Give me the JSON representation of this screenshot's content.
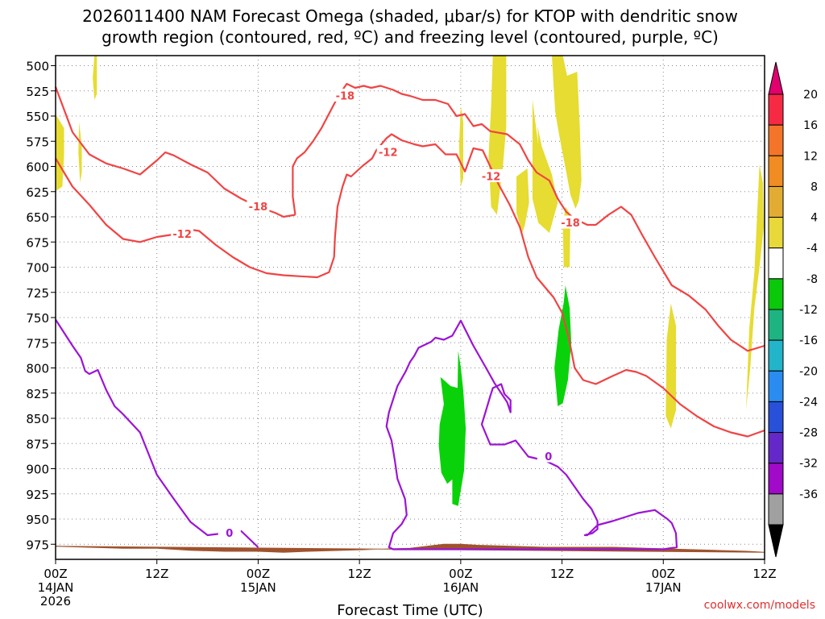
{
  "chart_data": {
    "type": "time-height cross-section (omega shading with temperature contours)",
    "title_line1": "2026011400 NAM Forecast Omega (shaded, μbar/s) for KTOP with dendritic snow",
    "title_line2": "growth region (contoured, red, ºC) and freezing level (contoured, purple, ºC)",
    "xlabel": "Forecast Time (UTC)",
    "ylabel": "",
    "x_axis": {
      "unit": "forecast hour",
      "range": [
        0,
        84
      ]
    },
    "y_axis": {
      "unit": "hPa",
      "range": [
        490,
        990
      ],
      "inverted": true
    },
    "y_ticks": [
      "500",
      "525",
      "550",
      "575",
      "600",
      "625",
      "650",
      "675",
      "700",
      "725",
      "750",
      "775",
      "800",
      "825",
      "850",
      "875",
      "900",
      "925",
      "950",
      "975"
    ],
    "x_ticks": [
      {
        "hour": 0,
        "lines": [
          "00Z",
          "14JAN",
          "2026"
        ]
      },
      {
        "hour": 12,
        "lines": [
          "12Z"
        ]
      },
      {
        "hour": 24,
        "lines": [
          "00Z",
          "15JAN"
        ]
      },
      {
        "hour": 36,
        "lines": [
          "12Z"
        ]
      },
      {
        "hour": 48,
        "lines": [
          "00Z",
          "16JAN"
        ]
      },
      {
        "hour": 60,
        "lines": [
          "12Z"
        ]
      },
      {
        "hour": 72,
        "lines": [
          "00Z",
          "17JAN"
        ]
      },
      {
        "hour": 84,
        "lines": [
          "12Z"
        ]
      }
    ],
    "colorbar": {
      "labels": [
        "20",
        "16",
        "12",
        "8",
        "4",
        "-4",
        "-8",
        "-12",
        "-16",
        "-20",
        "-24",
        "-28",
        "-32",
        "-36"
      ],
      "colors": [
        "#f72a44",
        "#f4752a",
        "#f08c21",
        "#e2ac33",
        "#e8d83a",
        "#ffffff",
        "#0ac80a",
        "#1eb482",
        "#22b4c8",
        "#2a8cf0",
        "#2850d8",
        "#6428c8",
        "#a00ac8",
        "#a0a0a0"
      ],
      "top_arrow": "#e0006e",
      "bottom_arrow": "#000000"
    },
    "colors": {
      "dgz_contour": "#f04444",
      "freezing_contour": "#9c14d4",
      "ground": "#a0522d",
      "shade_up": "#0ad20a",
      "shade_down": "#e6dc32"
    },
    "contour_labels": [
      {
        "text": "-18",
        "x": 34.3,
        "p": 530,
        "color": "#f04444"
      },
      {
        "text": "-12",
        "x": 39.4,
        "p": 586,
        "color": "#f04444"
      },
      {
        "text": "-18",
        "x": 24.0,
        "p": 640,
        "color": "#f04444"
      },
      {
        "text": "-12",
        "x": 15.0,
        "p": 667,
        "color": "#f04444"
      },
      {
        "text": "-12",
        "x": 51.6,
        "p": 610,
        "color": "#f04444"
      },
      {
        "text": "-18",
        "x": 61.0,
        "p": 656,
        "color": "#f04444"
      },
      {
        "text": "0",
        "x": 20.6,
        "p": 964,
        "color": "#9c14d4"
      },
      {
        "text": "0",
        "x": 58.4,
        "p": 888,
        "color": "#9c14d4"
      }
    ],
    "series": [
      {
        "name": "DGZ -12C line A",
        "kind": "line",
        "color": "#f04444",
        "x": [
          0,
          2,
          4,
          6,
          8,
          10,
          12,
          13.6,
          15.4,
          17,
          19,
          21,
          23,
          25,
          27,
          29,
          31,
          32.4,
          33
        ],
        "p": [
          592,
          620,
          638,
          658,
          672,
          675,
          670,
          668,
          662,
          664,
          678,
          690,
          700,
          706,
          708,
          709,
          710,
          705,
          690
        ]
      },
      {
        "name": "DGZ -12C line B",
        "kind": "line",
        "color": "#f04444",
        "x": [
          33,
          33.1,
          33.4,
          34,
          34.5,
          35,
          36.3,
          37.5,
          38,
          39.2,
          39.8,
          41,
          42.5,
          43.5,
          45,
          46.2,
          47.5,
          48.5,
          49.5,
          50.6,
          51.5,
          52.5,
          53.8,
          55,
          56,
          57,
          59,
          60,
          60.8,
          61.5,
          62.5,
          64,
          66,
          67.6,
          68.8,
          70,
          72,
          74,
          76,
          78,
          80,
          82,
          84
        ],
        "p": [
          690,
          670,
          640,
          620,
          608,
          610,
          600,
          592,
          584,
          572,
          568,
          574,
          578,
          580,
          578,
          588,
          588,
          605,
          582,
          584,
          600,
          618,
          638,
          660,
          690,
          710,
          730,
          745,
          770,
          800,
          812,
          816,
          808,
          802,
          804,
          808,
          820,
          836,
          848,
          858,
          864,
          868,
          862
        ]
      },
      {
        "name": "DGZ -18C line A",
        "kind": "line",
        "color": "#f04444",
        "x": [
          0,
          2,
          4,
          6,
          8,
          10,
          12,
          13,
          14,
          16,
          18,
          20,
          22,
          24,
          26,
          27,
          28.4
        ],
        "p": [
          521,
          566,
          588,
          597,
          602,
          608,
          594,
          586,
          589,
          598,
          606,
          622,
          632,
          640,
          646,
          650,
          648
        ]
      },
      {
        "name": "DGZ -18C line B",
        "kind": "line",
        "color": "#f04444",
        "x": [
          28.4,
          28.1,
          28.1,
          28.6,
          29.5,
          30.5,
          31.5,
          32.5,
          33.5,
          34.5,
          35.5,
          36.5,
          37.4,
          38.5,
          40,
          41,
          42,
          43.5,
          45,
          46.5,
          47.5,
          48.5,
          49.5,
          50.5,
          51.5,
          53.5,
          55,
          56,
          57,
          58.5,
          59.5,
          60.5,
          61.5,
          63,
          64,
          65.5,
          67,
          68.2,
          69.5,
          71,
          73,
          75,
          77,
          78.5,
          80,
          82,
          84
        ],
        "p": [
          648,
          630,
          600,
          592,
          586,
          575,
          562,
          546,
          530,
          518,
          522,
          520,
          522,
          520,
          524,
          528,
          530,
          534,
          534,
          538,
          550,
          548,
          560,
          558,
          565,
          568,
          578,
          594,
          606,
          614,
          632,
          645,
          652,
          658,
          658,
          648,
          640,
          648,
          668,
          690,
          718,
          728,
          742,
          758,
          772,
          783,
          778
        ]
      },
      {
        "name": "freezing line A",
        "kind": "line",
        "color": "#9c14d4",
        "x": [
          0,
          2,
          3,
          3.5,
          4,
          5,
          6,
          7,
          8,
          10,
          12,
          14,
          16,
          18,
          20,
          22,
          24
        ],
        "p": [
          752,
          778,
          790,
          803,
          806,
          802,
          822,
          838,
          846,
          864,
          906,
          930,
          953,
          966,
          964,
          962,
          978
        ]
      },
      {
        "name": "freezing closed loop",
        "kind": "area-outline",
        "color": "#9c14d4",
        "x": [
          39.5,
          40.5,
          41.5,
          42,
          42.5,
          43,
          44.5,
          45,
          46,
          47,
          48,
          49.5,
          51,
          52,
          53.5,
          53.9,
          53.9,
          53.2,
          52.8,
          51.8,
          51.5,
          51,
          50.5,
          51.5,
          53.2,
          54.5,
          56,
          58,
          59.5,
          60.5,
          61.5,
          62.5,
          63.5,
          64.2,
          64.2,
          63.6,
          62.7,
          63,
          64.2,
          66,
          69,
          71,
          72.5,
          73,
          73.5,
          73.6,
          72,
          70,
          68,
          66,
          64,
          62,
          60,
          58,
          56,
          54,
          52,
          50,
          48,
          46,
          44,
          42,
          41,
          40,
          39.5,
          40,
          41,
          41.6,
          41.4,
          40.5,
          40.2,
          39.8,
          39.2,
          39.5
        ],
        "p": [
          844,
          818,
          803,
          794,
          788,
          780,
          774,
          770,
          772,
          768,
          753,
          778,
          800,
          815,
          834,
          844,
          832,
          826,
          816,
          820,
          828,
          842,
          856,
          876,
          876,
          872,
          888,
          892,
          898,
          906,
          918,
          930,
          940,
          952,
          960,
          964,
          966,
          966,
          956,
          952,
          944,
          941,
          950,
          954,
          964,
          978,
          980,
          980,
          980,
          980,
          980,
          980,
          980,
          980,
          980,
          980,
          980,
          980,
          980,
          980,
          980,
          980,
          980,
          980,
          978,
          964,
          955,
          946,
          930,
          910,
          892,
          872,
          858,
          844
        ]
      },
      {
        "name": "ground",
        "kind": "area",
        "color": "#a0522d",
        "x": [
          0,
          4,
          8,
          12,
          16,
          20,
          24,
          27,
          30,
          34,
          38,
          42,
          44,
          46,
          48,
          50,
          54,
          58,
          62,
          66,
          70,
          74,
          78,
          82,
          84
        ],
        "p": [
          977,
          978,
          979,
          979,
          981,
          982,
          982,
          983,
          982,
          981,
          980,
          979,
          977,
          975,
          975,
          976,
          977,
          978,
          978,
          978,
          979,
          980,
          981,
          982,
          983
        ]
      },
      {
        "name": "omega +4 to +8 (rising) patch 1",
        "kind": "filled",
        "color": "#0ad20a",
        "x": [
          47.7,
          48,
          48.3,
          48.6,
          48.4,
          47.7,
          47,
          47,
          47.6
        ],
        "p": [
          783,
          799,
          822,
          860,
          902,
          937,
          935,
          880,
          832
        ]
      },
      {
        "name": "omega +4 to +8 (rising) patch 2",
        "kind": "filled",
        "color": "#0ad20a",
        "x": [
          45.6,
          46,
          45.5,
          45.4,
          45.7,
          46.4,
          47.1,
          47.7,
          47.7,
          46.8
        ],
        "p": [
          809,
          836,
          856,
          877,
          904,
          915,
          910,
          862,
          820,
          818
        ]
      },
      {
        "name": "omega +4 to +8 (rising) patch 3",
        "kind": "filled",
        "color": "#0ad20a",
        "x": [
          60.4,
          60.9,
          61.1,
          60.7,
          60.1,
          59.5,
          59.1,
          59.6,
          60.2
        ],
        "p": [
          718,
          740,
          775,
          812,
          835,
          838,
          800,
          762,
          735
        ]
      },
      {
        "name": "omega -4 to -8 (sinking) patch 1",
        "kind": "filled",
        "color": "#e6dc32",
        "x": [
          0,
          1,
          1,
          0.8,
          0.1,
          0
        ],
        "p": [
          548,
          562,
          588,
          620,
          624,
          580
        ]
      },
      {
        "name": "omega -4 to -8 (sinking) patch 2",
        "kind": "filled",
        "color": "#e6dc32",
        "x": [
          2.8,
          3.1,
          3.1,
          2.9,
          2.7
        ],
        "p": [
          556,
          580,
          606,
          616,
          586
        ]
      },
      {
        "name": "omega -4 to -8 (sinking) patch 3",
        "kind": "filled",
        "color": "#e6dc32",
        "x": [
          4.6,
          4.9,
          4.9,
          4.6,
          4.4
        ],
        "p": [
          490,
          490,
          528,
          534,
          512
        ]
      },
      {
        "name": "omega -4 to -8 (sinking) patch 4",
        "kind": "filled",
        "color": "#e6dc32",
        "x": [
          51.8,
          53.4,
          53.4,
          53,
          52.3,
          51.6,
          51.3,
          51.6
        ],
        "p": [
          490,
          490,
          560,
          600,
          648,
          640,
          590,
          540
        ]
      },
      {
        "name": "omega -4 to -8 (sinking) patch 5",
        "kind": "filled",
        "color": "#e6dc32",
        "x": [
          48,
          48.3,
          48.3,
          48,
          47.8
        ],
        "p": [
          540,
          556,
          612,
          620,
          580
        ]
      },
      {
        "name": "omega -4 to -8 (sinking) patch 6",
        "kind": "filled",
        "color": "#e6dc32",
        "x": [
          54.6,
          55.9,
          56.1,
          55.6,
          55.3,
          54.6
        ],
        "p": [
          610,
          602,
          636,
          658,
          666,
          646
        ]
      },
      {
        "name": "omega -4 to -8 (sinking) patch 7",
        "kind": "filled",
        "color": "#e6dc32",
        "x": [
          56.5,
          57,
          57.2,
          57.1,
          57.6,
          58.8,
          59.5,
          58.5,
          57.2,
          56.5,
          56.5
        ],
        "p": [
          534,
          566,
          578,
          560,
          580,
          608,
          636,
          666,
          656,
          632,
          600
        ]
      },
      {
        "name": "omega -4 to -8 (sinking) patch 8",
        "kind": "filled",
        "color": "#e6dc32",
        "x": [
          58.8,
          60.1,
          60.6,
          61.8,
          62.1,
          62.3,
          62,
          61.6,
          61,
          60.6,
          60.1,
          59.6,
          59.2,
          59
        ],
        "p": [
          490,
          490,
          510,
          506,
          560,
          614,
          634,
          642,
          628,
          610,
          588,
          566,
          546,
          520
        ]
      },
      {
        "name": "omega -4 to -8 (sinking) patch 9",
        "kind": "filled",
        "color": "#e6dc32",
        "x": [
          60.4,
          61,
          60.9,
          60.2,
          60.1
        ],
        "p": [
          640,
          648,
          700,
          700,
          660
        ]
      },
      {
        "name": "omega -4 to -8 (sinking) patch 10",
        "kind": "filled",
        "color": "#e6dc32",
        "x": [
          72.9,
          73.5,
          73.5,
          72.9,
          72.3,
          72.4
        ],
        "p": [
          736,
          758,
          842,
          860,
          848,
          772
        ]
      },
      {
        "name": "omega -4 to -8 (sinking) patch 11",
        "kind": "filled",
        "color": "#e6dc32",
        "x": [
          83.4,
          83.8,
          83.9,
          83.4,
          82.8,
          82.3,
          81.8,
          82.2,
          82.8
        ],
        "p": [
          598,
          616,
          660,
          700,
          740,
          800,
          842,
          760,
          704
        ]
      }
    ]
  },
  "watermark": "coolwx.com/models"
}
